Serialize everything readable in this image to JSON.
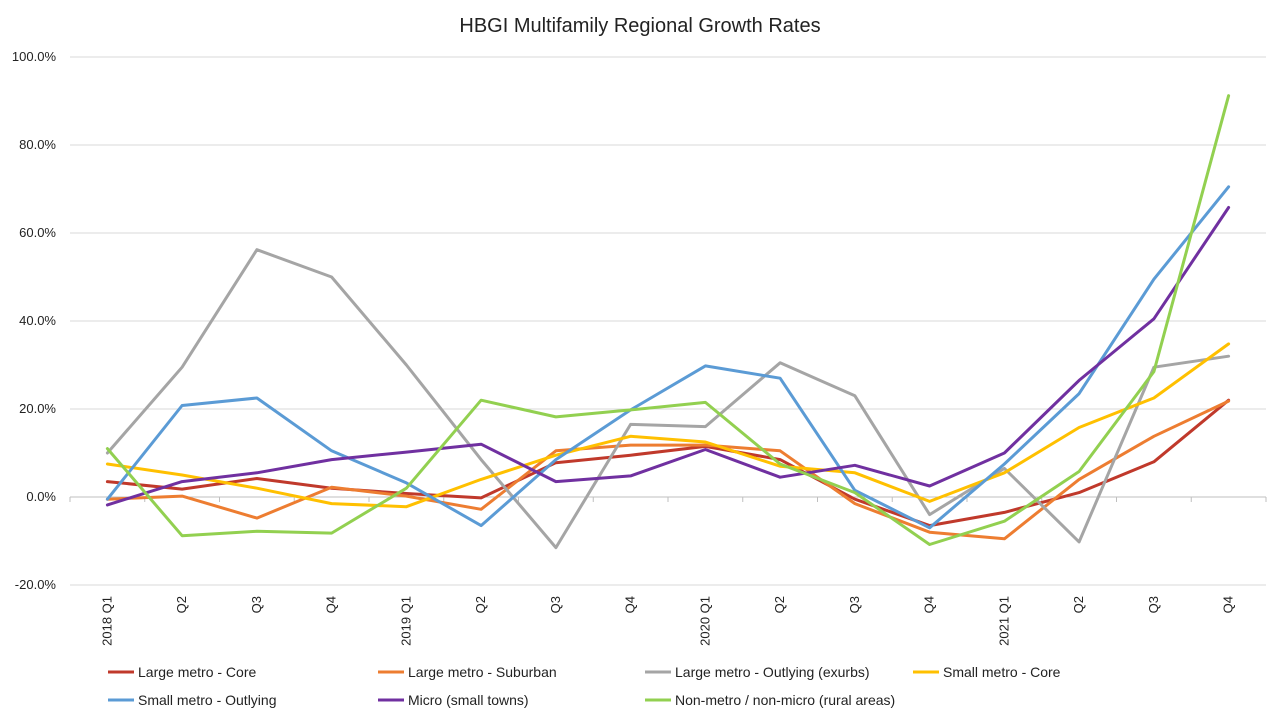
{
  "chart_data": {
    "type": "line",
    "title": "HBGI Multifamily Regional Growth Rates",
    "xlabel": "",
    "ylabel": "",
    "x": [
      "2018 Q1",
      "Q2",
      "Q3",
      "Q4",
      "2019 Q1",
      "Q2",
      "Q3",
      "Q4",
      "2020 Q1",
      "Q2",
      "Q3",
      "Q4",
      "2021 Q1",
      "Q2",
      "Q3",
      "Q4"
    ],
    "ylim": [
      -20,
      100
    ],
    "yticks": [
      -20,
      0,
      20,
      40,
      60,
      80,
      100
    ],
    "ytick_labels": [
      "-20.0%",
      "0.0%",
      "20.0%",
      "40.0%",
      "60.0%",
      "80.0%",
      "100.0%"
    ],
    "grid": true,
    "legend_position": "bottom",
    "series": [
      {
        "name": "Large metro - Core",
        "color": "#C0392B",
        "values": [
          3.5,
          1.8,
          4.2,
          2.0,
          0.8,
          -0.2,
          7.8,
          9.5,
          11.5,
          8.5,
          -0.5,
          -6.5,
          -3.5,
          1.0,
          8.0,
          22.0
        ]
      },
      {
        "name": "Large metro - Suburban",
        "color": "#ED7D31",
        "values": [
          -0.5,
          0.2,
          -4.8,
          2.2,
          0.2,
          -2.8,
          10.5,
          11.8,
          11.8,
          10.5,
          -1.5,
          -8.0,
          -9.5,
          4.0,
          13.8,
          21.8
        ]
      },
      {
        "name": "Large metro - Outlying (exurbs)",
        "color": "#A5A5A5",
        "values": [
          10.0,
          29.5,
          56.2,
          50.0,
          30.0,
          8.5,
          -11.5,
          16.5,
          16.0,
          30.5,
          23.0,
          -4.0,
          6.5,
          -10.2,
          29.5,
          32.0
        ]
      },
      {
        "name": "Small metro - Core",
        "color": "#FFC000",
        "values": [
          7.5,
          5.0,
          2.0,
          -1.5,
          -2.2,
          4.0,
          9.5,
          13.8,
          12.5,
          7.0,
          5.5,
          -1.0,
          5.5,
          15.8,
          22.5,
          34.8
        ]
      },
      {
        "name": "Small metro - Outlying",
        "color": "#5B9BD5",
        "values": [
          -0.5,
          20.8,
          22.5,
          10.5,
          3.2,
          -6.5,
          8.5,
          19.8,
          29.8,
          27.0,
          1.5,
          -7.0,
          7.5,
          23.5,
          49.5,
          70.5
        ]
      },
      {
        "name": "Micro (small towns)",
        "color": "#7030A0",
        "values": [
          -1.8,
          3.5,
          5.5,
          8.5,
          10.2,
          12.0,
          3.5,
          4.8,
          10.8,
          4.5,
          7.2,
          2.5,
          10.0,
          26.5,
          40.5,
          65.8
        ]
      },
      {
        "name": "Non-metro / non-micro (rural areas)",
        "color": "#92D050",
        "values": [
          11.0,
          -8.8,
          -7.8,
          -8.2,
          2.0,
          22.0,
          18.2,
          19.8,
          21.5,
          7.5,
          1.0,
          -10.8,
          -5.5,
          5.8,
          28.5,
          91.2
        ]
      }
    ]
  }
}
